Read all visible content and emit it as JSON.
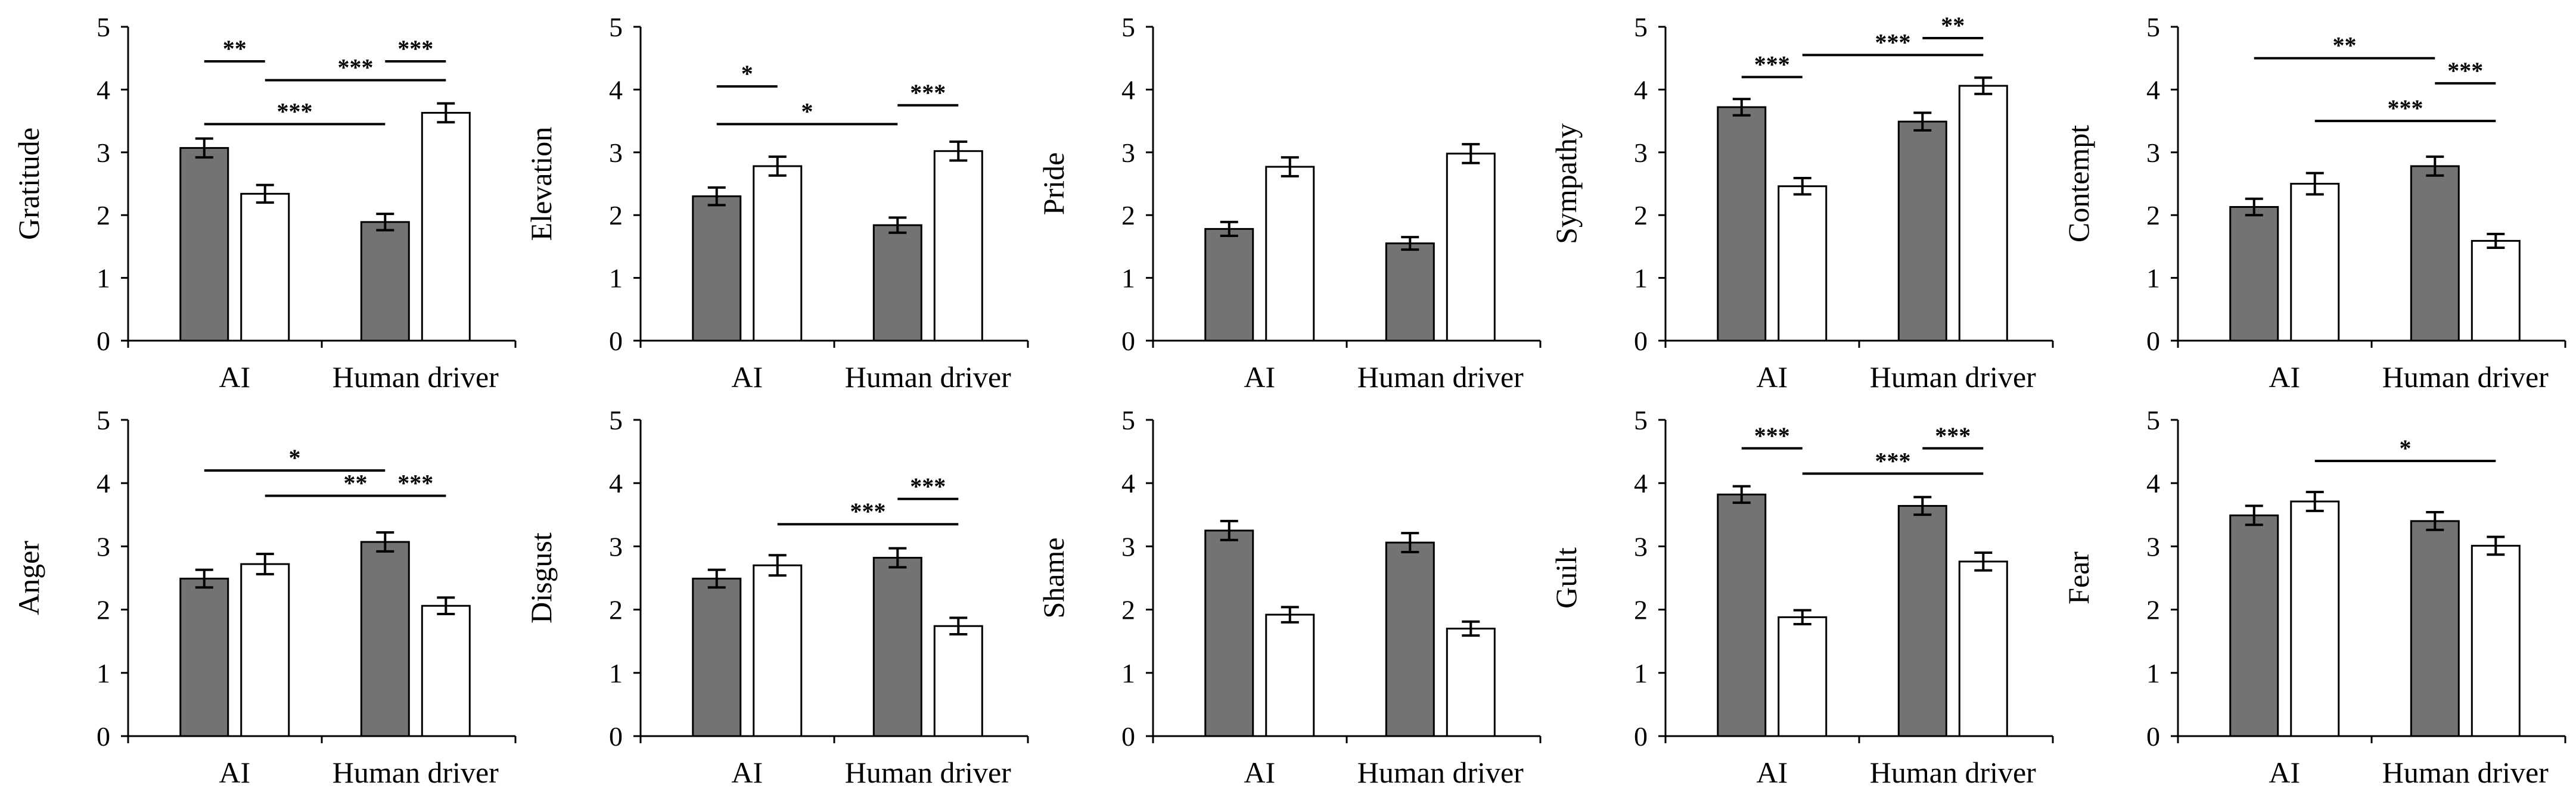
{
  "colors": {
    "series_dark": "#737373",
    "series_light": "#ffffff",
    "stroke": "#000000"
  },
  "chart_data": [
    {
      "type": "bar",
      "ylabel": "Gratitude",
      "categories": [
        "AI",
        "Human driver"
      ],
      "ylim": [
        0,
        5
      ],
      "yticks": [
        0,
        1,
        2,
        3,
        4,
        5
      ],
      "series": [
        {
          "values": [
            3.07,
            1.89
          ],
          "errors": [
            0.15,
            0.13
          ]
        },
        {
          "values": [
            2.34,
            3.63
          ],
          "errors": [
            0.14,
            0.15
          ]
        }
      ],
      "significance": [
        {
          "label": "**",
          "from": [
            0,
            0
          ],
          "to": [
            0,
            1
          ],
          "level": 4.45
        },
        {
          "label": "***",
          "from": [
            1,
            0
          ],
          "to": [
            1,
            1
          ],
          "level": 4.45
        },
        {
          "label": "***",
          "from": [
            0,
            1
          ],
          "to": [
            1,
            1
          ],
          "level": 4.15
        },
        {
          "label": "***",
          "from": [
            0,
            0
          ],
          "to": [
            1,
            0
          ],
          "level": 3.45
        }
      ]
    },
    {
      "type": "bar",
      "ylabel": "Elevation",
      "categories": [
        "AI",
        "Human driver"
      ],
      "ylim": [
        0,
        5
      ],
      "yticks": [
        0,
        1,
        2,
        3,
        4,
        5
      ],
      "series": [
        {
          "values": [
            2.3,
            1.84
          ],
          "errors": [
            0.14,
            0.12
          ]
        },
        {
          "values": [
            2.78,
            3.02
          ],
          "errors": [
            0.15,
            0.15
          ]
        }
      ],
      "significance": [
        {
          "label": "*",
          "from": [
            0,
            0
          ],
          "to": [
            0,
            1
          ],
          "level": 4.05
        },
        {
          "label": "***",
          "from": [
            1,
            0
          ],
          "to": [
            1,
            1
          ],
          "level": 3.75
        },
        {
          "label": "*",
          "from": [
            0,
            0
          ],
          "to": [
            1,
            0
          ],
          "level": 3.45
        }
      ]
    },
    {
      "type": "bar",
      "ylabel": "Pride",
      "categories": [
        "AI",
        "Human driver"
      ],
      "ylim": [
        0,
        5
      ],
      "yticks": [
        0,
        1,
        2,
        3,
        4,
        5
      ],
      "series": [
        {
          "values": [
            1.78,
            1.55
          ],
          "errors": [
            0.11,
            0.1
          ]
        },
        {
          "values": [
            2.77,
            2.98
          ],
          "errors": [
            0.15,
            0.15
          ]
        }
      ],
      "significance": []
    },
    {
      "type": "bar",
      "ylabel": "Sympathy",
      "categories": [
        "AI",
        "Human driver"
      ],
      "ylim": [
        0,
        5
      ],
      "yticks": [
        0,
        1,
        2,
        3,
        4,
        5
      ],
      "series": [
        {
          "values": [
            3.72,
            3.49
          ],
          "errors": [
            0.13,
            0.14
          ]
        },
        {
          "values": [
            2.46,
            4.06
          ],
          "errors": [
            0.13,
            0.13
          ]
        }
      ],
      "significance": [
        {
          "label": "**",
          "from": [
            1,
            0
          ],
          "to": [
            1,
            1
          ],
          "level": 4.82
        },
        {
          "label": "***",
          "from": [
            0,
            1
          ],
          "to": [
            1,
            1
          ],
          "level": 4.55
        },
        {
          "label": "***",
          "from": [
            0,
            0
          ],
          "to": [
            0,
            1
          ],
          "level": 4.2
        }
      ]
    },
    {
      "type": "bar",
      "ylabel": "Contempt",
      "categories": [
        "AI",
        "Human driver"
      ],
      "ylim": [
        0,
        5
      ],
      "yticks": [
        0,
        1,
        2,
        3,
        4,
        5
      ],
      "series": [
        {
          "values": [
            2.13,
            2.78
          ],
          "errors": [
            0.13,
            0.15
          ]
        },
        {
          "values": [
            2.5,
            1.59
          ],
          "errors": [
            0.17,
            0.11
          ]
        }
      ],
      "significance": [
        {
          "label": "**",
          "from": [
            0,
            0
          ],
          "to": [
            1,
            0
          ],
          "level": 4.5
        },
        {
          "label": "***",
          "from": [
            1,
            0
          ],
          "to": [
            1,
            1
          ],
          "level": 4.1
        },
        {
          "label": "***",
          "from": [
            0,
            1
          ],
          "to": [
            1,
            1
          ],
          "level": 3.5
        }
      ]
    },
    {
      "type": "bar",
      "ylabel": "Anger",
      "categories": [
        "AI",
        "Human driver"
      ],
      "ylim": [
        0,
        5
      ],
      "yticks": [
        0,
        1,
        2,
        3,
        4,
        5
      ],
      "series": [
        {
          "values": [
            2.49,
            3.07
          ],
          "errors": [
            0.14,
            0.15
          ]
        },
        {
          "values": [
            2.72,
            2.06
          ],
          "errors": [
            0.16,
            0.13
          ]
        }
      ],
      "significance": [
        {
          "label": "*",
          "from": [
            0,
            0
          ],
          "to": [
            1,
            0
          ],
          "level": 4.2
        },
        {
          "label": "***",
          "from": [
            1,
            0
          ],
          "to": [
            1,
            1
          ],
          "level": 3.8
        },
        {
          "label": "**",
          "from": [
            0,
            1
          ],
          "to": [
            1,
            1
          ],
          "level": 3.8
        }
      ]
    },
    {
      "type": "bar",
      "ylabel": "Disgust",
      "categories": [
        "AI",
        "Human driver"
      ],
      "ylim": [
        0,
        5
      ],
      "yticks": [
        0,
        1,
        2,
        3,
        4,
        5
      ],
      "series": [
        {
          "values": [
            2.49,
            2.82
          ],
          "errors": [
            0.14,
            0.15
          ]
        },
        {
          "values": [
            2.7,
            1.74
          ],
          "errors": [
            0.16,
            0.13
          ]
        }
      ],
      "significance": [
        {
          "label": "***",
          "from": [
            1,
            0
          ],
          "to": [
            1,
            1
          ],
          "level": 3.75
        },
        {
          "label": "***",
          "from": [
            0,
            1
          ],
          "to": [
            1,
            1
          ],
          "level": 3.35
        }
      ]
    },
    {
      "type": "bar",
      "ylabel": "Shame",
      "categories": [
        "AI",
        "Human driver"
      ],
      "ylim": [
        0,
        5
      ],
      "yticks": [
        0,
        1,
        2,
        3,
        4,
        5
      ],
      "series": [
        {
          "values": [
            3.25,
            3.06
          ],
          "errors": [
            0.15,
            0.15
          ]
        },
        {
          "values": [
            1.92,
            1.7
          ],
          "errors": [
            0.12,
            0.11
          ]
        }
      ],
      "significance": []
    },
    {
      "type": "bar",
      "ylabel": "Guilt",
      "categories": [
        "AI",
        "Human driver"
      ],
      "ylim": [
        0,
        5
      ],
      "yticks": [
        0,
        1,
        2,
        3,
        4,
        5
      ],
      "series": [
        {
          "values": [
            3.82,
            3.64
          ],
          "errors": [
            0.13,
            0.14
          ]
        },
        {
          "values": [
            1.88,
            2.76
          ],
          "errors": [
            0.11,
            0.14
          ]
        }
      ],
      "significance": [
        {
          "label": "***",
          "from": [
            0,
            0
          ],
          "to": [
            0,
            1
          ],
          "level": 4.55
        },
        {
          "label": "***",
          "from": [
            1,
            0
          ],
          "to": [
            1,
            1
          ],
          "level": 4.55
        },
        {
          "label": "***",
          "from": [
            0,
            1
          ],
          "to": [
            1,
            1
          ],
          "level": 4.15
        }
      ]
    },
    {
      "type": "bar",
      "ylabel": "Fear",
      "categories": [
        "AI",
        "Human driver"
      ],
      "ylim": [
        0,
        5
      ],
      "yticks": [
        0,
        1,
        2,
        3,
        4,
        5
      ],
      "series": [
        {
          "values": [
            3.49,
            3.4
          ],
          "errors": [
            0.15,
            0.14
          ]
        },
        {
          "values": [
            3.71,
            3.01
          ],
          "errors": [
            0.15,
            0.14
          ]
        }
      ],
      "significance": [
        {
          "label": "*",
          "from": [
            0,
            1
          ],
          "to": [
            1,
            1
          ],
          "level": 4.35
        }
      ]
    }
  ]
}
